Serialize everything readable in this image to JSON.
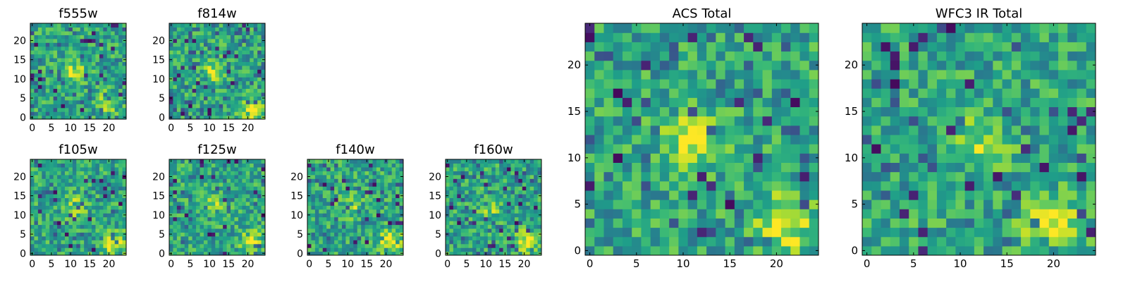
{
  "chart_data": [
    {
      "type": "heatmap",
      "title": "f555w",
      "grid_size": 25,
      "xlim": [
        -0.5,
        24.5
      ],
      "ylim": [
        -0.5,
        24.5
      ],
      "xticks": [
        0,
        5,
        10,
        15,
        20
      ],
      "yticks": [
        0,
        5,
        10,
        15,
        20
      ],
      "colormap": "viridis",
      "hotspots": [
        [
          11,
          12,
          0.7
        ],
        [
          20,
          4,
          0.6
        ]
      ],
      "seed": 11
    },
    {
      "type": "heatmap",
      "title": "f814w",
      "grid_size": 25,
      "xlim": [
        -0.5,
        24.5
      ],
      "ylim": [
        -0.5,
        24.5
      ],
      "xticks": [
        0,
        5,
        10,
        15,
        20
      ],
      "yticks": [
        0,
        5,
        10,
        15,
        20
      ],
      "colormap": "viridis",
      "hotspots": [
        [
          11,
          12,
          0.6
        ],
        [
          21,
          2,
          0.8
        ]
      ],
      "seed": 23
    },
    {
      "type": "heatmap",
      "title": "f105w",
      "grid_size": 25,
      "xlim": [
        -0.5,
        24.5
      ],
      "ylim": [
        -0.5,
        24.5
      ],
      "xticks": [
        0,
        5,
        10,
        15,
        20
      ],
      "yticks": [
        0,
        5,
        10,
        15,
        20
      ],
      "colormap": "viridis",
      "hotspots": [
        [
          11,
          12,
          0.6
        ],
        [
          21,
          3,
          0.9
        ]
      ],
      "seed": 37
    },
    {
      "type": "heatmap",
      "title": "f125w",
      "grid_size": 25,
      "xlim": [
        -0.5,
        24.5
      ],
      "ylim": [
        -0.5,
        24.5
      ],
      "xticks": [
        0,
        5,
        10,
        15,
        20
      ],
      "yticks": [
        0,
        5,
        10,
        15,
        20
      ],
      "colormap": "viridis",
      "hotspots": [
        [
          11,
          12,
          0.6
        ],
        [
          21,
          3,
          0.8
        ]
      ],
      "seed": 41
    },
    {
      "type": "heatmap",
      "title": "f140w",
      "grid_size": 25,
      "xlim": [
        -0.5,
        24.5
      ],
      "ylim": [
        -0.5,
        24.5
      ],
      "xticks": [
        0,
        5,
        10,
        15,
        20
      ],
      "yticks": [
        0,
        5,
        10,
        15,
        20
      ],
      "colormap": "viridis",
      "hotspots": [
        [
          11,
          12,
          0.5
        ],
        [
          21,
          3,
          1.0
        ]
      ],
      "seed": 53
    },
    {
      "type": "heatmap",
      "title": "f160w",
      "grid_size": 25,
      "xlim": [
        -0.5,
        24.5
      ],
      "ylim": [
        -0.5,
        24.5
      ],
      "xticks": [
        0,
        5,
        10,
        15,
        20
      ],
      "yticks": [
        0,
        5,
        10,
        15,
        20
      ],
      "colormap": "viridis",
      "hotspots": [
        [
          11,
          12,
          0.5
        ],
        [
          21,
          3,
          0.9
        ]
      ],
      "seed": 67
    },
    {
      "type": "heatmap",
      "title": "ACS Total",
      "grid_size": 25,
      "xlim": [
        -0.5,
        24.5
      ],
      "ylim": [
        -0.5,
        24.5
      ],
      "xticks": [
        0,
        5,
        10,
        15,
        20
      ],
      "yticks": [
        0,
        5,
        10,
        15,
        20
      ],
      "colormap": "viridis",
      "hotspots": [
        [
          11,
          12,
          0.8
        ],
        [
          21,
          3,
          0.9
        ]
      ],
      "seed": 79
    },
    {
      "type": "heatmap",
      "title": "WFC3 IR Total",
      "grid_size": 25,
      "xlim": [
        -0.5,
        24.5
      ],
      "ylim": [
        -0.5,
        24.5
      ],
      "xticks": [
        0,
        5,
        10,
        15,
        20
      ],
      "yticks": [
        0,
        5,
        10,
        15,
        20
      ],
      "colormap": "viridis",
      "hotspots": [
        [
          12,
          12,
          0.6
        ],
        [
          20,
          3,
          1.0
        ]
      ],
      "seed": 97
    }
  ]
}
